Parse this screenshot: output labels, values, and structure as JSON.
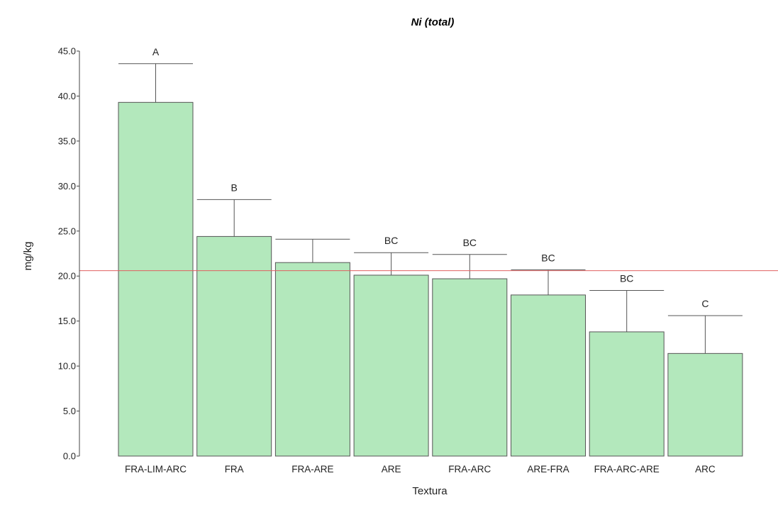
{
  "chart_data": {
    "type": "bar",
    "title": "Ni (total)",
    "xlabel": "Textura",
    "ylabel": "mg/kg",
    "ylim": [
      0,
      45
    ],
    "yticks": [
      "0.0",
      "5.0",
      "10.0",
      "15.0",
      "20.0",
      "25.0",
      "30.0",
      "35.0",
      "40.0",
      "45.0"
    ],
    "yticks_values": [
      0,
      5,
      10,
      15,
      20,
      25,
      30,
      35,
      40,
      45
    ],
    "categories": [
      "FRA-LIM-ARC",
      "FRA",
      "FRA-ARE",
      "ARE",
      "FRA-ARC",
      "ARE-FRA",
      "FRA-ARC-ARE",
      "ARC"
    ],
    "values": [
      39.3,
      24.4,
      21.5,
      20.1,
      19.7,
      17.9,
      13.8,
      11.4
    ],
    "error_upper": [
      43.6,
      28.5,
      24.1,
      22.6,
      22.4,
      20.7,
      18.4,
      15.6
    ],
    "group_labels": [
      "A",
      "B",
      "",
      "BC",
      "BC",
      "BC",
      "BC",
      "C"
    ],
    "reference_line": 20.6,
    "grid": false,
    "colors": {
      "bar_fill": "#b3e8bc",
      "bar_stroke": "#555555",
      "reference_line": "#e06060",
      "axis": "#444444"
    }
  }
}
